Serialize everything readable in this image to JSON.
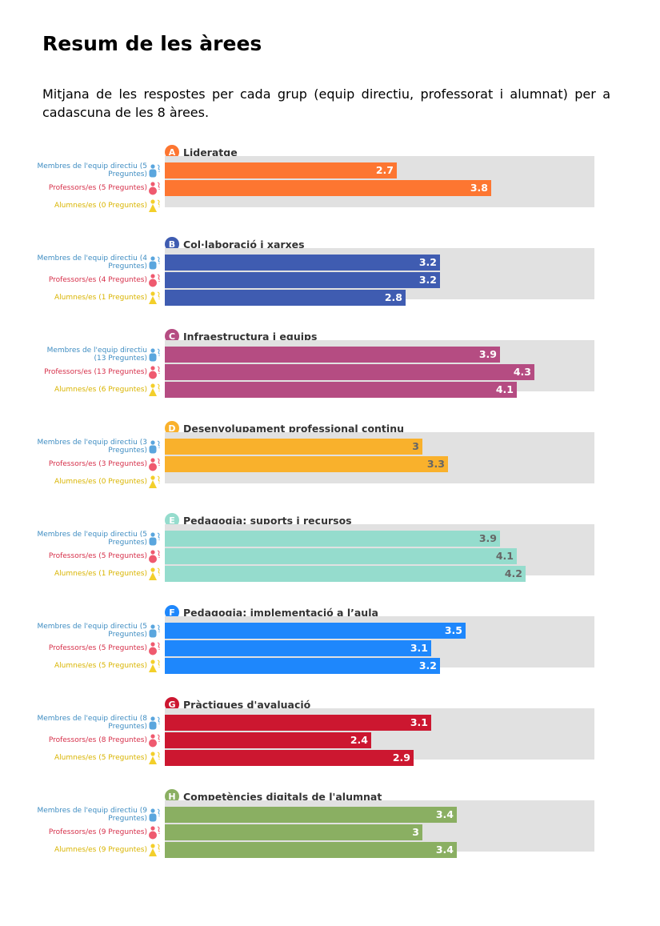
{
  "title": "Resum de les àrees",
  "subtitle": "Mitjana de les respostes per cada grup (equip directiu, professorat i alumnat) per a cadascuna de les 8 àrees.",
  "group_colors": {
    "directiu": "#3f8dc2",
    "professorat": "#d6304a",
    "alumnat": "#d9b400"
  },
  "group_icon_colors": {
    "directiu": "#5aa6de",
    "professorat": "#ef5a6f",
    "alumnat": "#f3cf2a"
  },
  "chart_data": {
    "type": "bar",
    "orientation": "horizontal",
    "xlim": [
      0,
      5
    ],
    "groups": [
      "Membres de l'equip directiu",
      "Professors/es",
      "Alumnes/es"
    ],
    "areas": [
      {
        "letter": "A",
        "title": "Lideratge",
        "color": "#fd7631",
        "label_color": "#ffffff",
        "rows": [
          {
            "label": "Membres de l'equip directiu (5 Preguntes)",
            "value": 2.7,
            "display": "2.7"
          },
          {
            "label": "Professors/es (5 Preguntes)",
            "value": 3.8,
            "display": "3.8"
          },
          {
            "label": "Alumnes/es (0 Preguntes)",
            "value": null,
            "display": ""
          }
        ]
      },
      {
        "letter": "B",
        "title": "Col·laboració i xarxes",
        "color": "#3f5cb1",
        "label_color": "#ffffff",
        "rows": [
          {
            "label": "Membres de l'equip directiu (4 Preguntes)",
            "value": 3.2,
            "display": "3.2"
          },
          {
            "label": "Professors/es (4 Preguntes)",
            "value": 3.2,
            "display": "3.2"
          },
          {
            "label": "Alumnes/es (1 Preguntes)",
            "value": 2.8,
            "display": "2.8"
          }
        ]
      },
      {
        "letter": "C",
        "title": "Infraestructura i equips",
        "color": "#b54c82",
        "label_color": "#ffffff",
        "rows": [
          {
            "label": "Membres de l'equip directiu (13 Preguntes)",
            "value": 3.9,
            "display": "3.9"
          },
          {
            "label": "Professors/es (13 Preguntes)",
            "value": 4.3,
            "display": "4.3"
          },
          {
            "label": "Alumnes/es (6 Preguntes)",
            "value": 4.1,
            "display": "4.1"
          }
        ]
      },
      {
        "letter": "D",
        "title": "Desenvolupament professional continu",
        "color": "#f9b12c",
        "label_color": "#666666",
        "rows": [
          {
            "label": "Membres de l'equip directiu (3 Preguntes)",
            "value": 3,
            "display": "3"
          },
          {
            "label": "Professors/es (3 Preguntes)",
            "value": 3.3,
            "display": "3.3"
          },
          {
            "label": "Alumnes/es (0 Preguntes)",
            "value": null,
            "display": ""
          }
        ]
      },
      {
        "letter": "E",
        "title": "Pedagogia: suports i recursos",
        "color": "#95dccd",
        "label_color": "#666666",
        "rows": [
          {
            "label": "Membres de l'equip directiu (5 Preguntes)",
            "value": 3.9,
            "display": "3.9"
          },
          {
            "label": "Professors/es (5 Preguntes)",
            "value": 4.1,
            "display": "4.1"
          },
          {
            "label": "Alumnes/es (1 Preguntes)",
            "value": 4.2,
            "display": "4.2"
          }
        ]
      },
      {
        "letter": "F",
        "title": "Pedagogia: implementació a l’aula",
        "color": "#1e87fc",
        "label_color": "#ffffff",
        "rows": [
          {
            "label": "Membres de l'equip directiu (5 Preguntes)",
            "value": 3.5,
            "display": "3.5"
          },
          {
            "label": "Professors/es (5 Preguntes)",
            "value": 3.1,
            "display": "3.1"
          },
          {
            "label": "Alumnes/es (5 Preguntes)",
            "value": 3.2,
            "display": "3.2"
          }
        ]
      },
      {
        "letter": "G",
        "title": "Pràctiques d'avaluació",
        "color": "#cc1730",
        "label_color": "#ffffff",
        "rows": [
          {
            "label": "Membres de l'equip directiu (8 Preguntes)",
            "value": 3.1,
            "display": "3.1"
          },
          {
            "label": "Professors/es (8 Preguntes)",
            "value": 2.4,
            "display": "2.4"
          },
          {
            "label": "Alumnes/es (5 Preguntes)",
            "value": 2.9,
            "display": "2.9"
          }
        ]
      },
      {
        "letter": "H",
        "title": "Competències digitals de l'alumnat",
        "color": "#8aaf62",
        "label_color": "#ffffff",
        "rows": [
          {
            "label": "Membres de l'equip directiu (9 Preguntes)",
            "value": 3.4,
            "display": "3.4"
          },
          {
            "label": "Professors/es (9 Preguntes)",
            "value": 3,
            "display": "3"
          },
          {
            "label": "Alumnes/es (9 Preguntes)",
            "value": 3.4,
            "display": "3.4"
          }
        ]
      }
    ]
  }
}
